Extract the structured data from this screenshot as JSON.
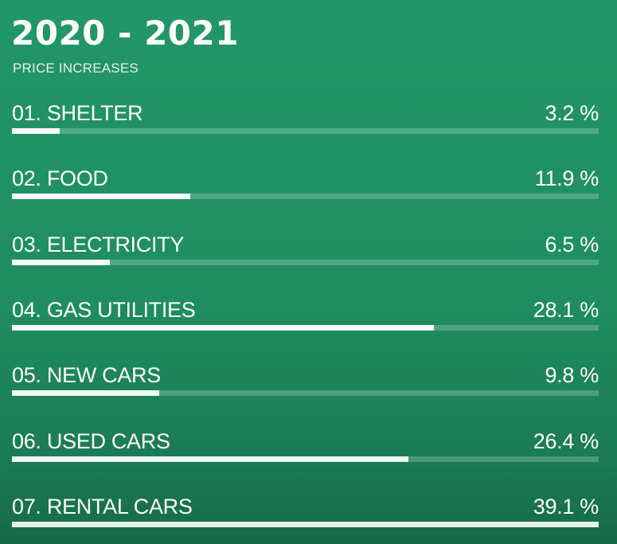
{
  "chart_data": {
    "type": "bar",
    "title": "2020 - 2021",
    "subtitle": "PRICE INCREASES",
    "xlim": [
      0,
      39.1
    ],
    "series": [
      {
        "label": "01. SHELTER",
        "value": 3.2,
        "value_text": "3.2 %"
      },
      {
        "label": "02. FOOD",
        "value": 11.9,
        "value_text": "11.9 %"
      },
      {
        "label": "03. ELECTRICITY",
        "value": 6.5,
        "value_text": "6.5 %"
      },
      {
        "label": "04. GAS UTILITIES",
        "value": 28.1,
        "value_text": "28.1 %"
      },
      {
        "label": "05. NEW CARS",
        "value": 9.8,
        "value_text": "9.8 %"
      },
      {
        "label": "06. USED CARS",
        "value": 26.4,
        "value_text": "26.4 %"
      },
      {
        "label": "07. RENTAL CARS",
        "value": 39.1,
        "value_text": "39.1 %"
      }
    ]
  },
  "colors": {
    "background": "#22966a",
    "bar_fill": "#ffffff",
    "bar_track": "#ffffff38",
    "text": "#ffffff"
  }
}
